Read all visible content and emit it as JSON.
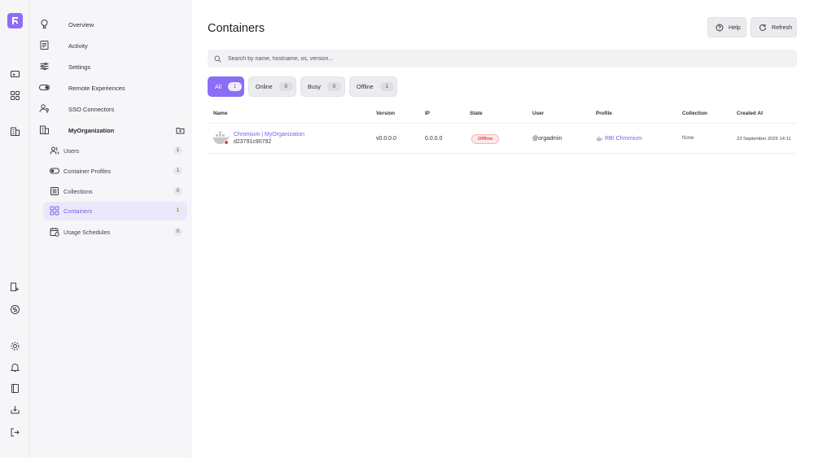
{
  "nav": {
    "items": [
      {
        "label": "Overview",
        "icon": "overview-icon"
      },
      {
        "label": "Activity",
        "icon": "activity-icon"
      },
      {
        "label": "Settings",
        "icon": "settings-sliders-icon"
      },
      {
        "label": "Remote Experiences",
        "icon": "toggle-icon"
      },
      {
        "label": "SSO Connectors",
        "icon": "user-key-icon"
      }
    ],
    "org": {
      "label": "MyOrganization"
    },
    "sub_items": [
      {
        "label": "Users",
        "count": "1"
      },
      {
        "label": "Container Profiles",
        "count": "1"
      },
      {
        "label": "Collections",
        "count": "0"
      },
      {
        "label": "Containers",
        "count": "1"
      },
      {
        "label": "Usage Schedules",
        "count": "0"
      }
    ]
  },
  "page": {
    "title": "Containers",
    "help_label": "Help",
    "refresh_label": "Refresh",
    "search_placeholder": "Search by name, hostname, os, version...",
    "filters": [
      {
        "label": "All",
        "count": "1"
      },
      {
        "label": "Online",
        "count": "0"
      },
      {
        "label": "Busy",
        "count": "0"
      },
      {
        "label": "Offline",
        "count": "1"
      }
    ]
  },
  "table": {
    "columns": [
      "Name",
      "Version",
      "IP",
      "State",
      "User",
      "Profile",
      "Collection",
      "Created At"
    ],
    "rows": [
      {
        "name": "Chromium | MyOrganization",
        "id": "d23791c90792",
        "version": "v0.0.0.0",
        "ip": "0.0.0.0",
        "state": "Offline",
        "user": "@orgadmin",
        "profile": "RBI Chromium",
        "collection": "None",
        "created_at": "23 September 2025 14:11"
      }
    ]
  },
  "colors": {
    "accent": "#8b6ef5",
    "offline": "#d94848"
  }
}
